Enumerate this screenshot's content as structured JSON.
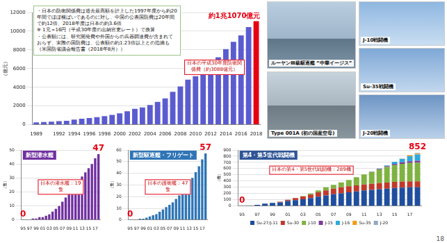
{
  "chart_data": [
    {
      "type": "bar",
      "y_label": "（億元）",
      "categories": [
        "1989",
        null,
        null,
        "1992",
        null,
        "1994",
        null,
        "1996",
        null,
        "1998",
        null,
        "2000",
        null,
        "2002",
        null,
        "2004",
        null,
        "2006",
        null,
        "2008",
        null,
        "2010",
        null,
        "2012",
        null,
        "2014",
        null,
        "2016",
        null,
        "2018"
      ],
      "values": [
        251,
        290,
        330,
        378,
        425,
        550,
        637,
        720,
        806,
        910,
        1047,
        1205,
        1442,
        1694,
        1853,
        2100,
        2447,
        2807,
        3509,
        4099,
        4807,
        5191,
        5836,
        6503,
        7202,
        8082,
        8869,
        9544,
        10444,
        11070
      ],
      "colors": [
        "#5b5bd0",
        "#5b5bd0",
        "#5b5bd0",
        "#5b5bd0",
        "#5b5bd0",
        "#5b5bd0",
        "#5b5bd0",
        "#5b5bd0",
        "#5b5bd0",
        "#5b5bd0",
        "#5b5bd0",
        "#5b5bd0",
        "#5b5bd0",
        "#5b5bd0",
        "#5b5bd0",
        "#5b5bd0",
        "#5b5bd0",
        "#5b5bd0",
        "#5b5bd0",
        "#5b5bd0",
        "#5b5bd0",
        "#5b5bd0",
        "#5b5bd0",
        "#5b5bd0",
        "#5b5bd0",
        "#5b5bd0",
        "#5b5bd0",
        "#5b5bd0",
        "#5b5bd0",
        "#e60012"
      ],
      "ylim": [
        0,
        12000
      ],
      "yticks": [
        0,
        2000,
        4000,
        6000,
        8000,
        10000,
        12000
      ],
      "grid": true,
      "data_labels": true,
      "value_labels": [
        null,
        null,
        null,
        null,
        null,
        null,
        null,
        null,
        null,
        null,
        null,
        null,
        null,
        null,
        null,
        null,
        null,
        null,
        null,
        null,
        null,
        null,
        null,
        null,
        null,
        null,
        null,
        null,
        null,
        "約1兆1070億元"
      ],
      "notes": [
        "・日本の防衛関係費は過去最高額を計上した1997年度から約20年間でほぼ横ばいであるのに対し、中国の公表国防費は20年間で約12倍、2018年度は日本の約3.6倍",
        "※ 1元＝16円（平成30年度の出納官吏レート）で換算",
        "・公表額には、研究開発費や外国からの兵器調達費が含まれておらず、実際の国防費は、公表額の約1.23倍以上との指摘も（米国防省議会報告書（2018年8月））"
      ],
      "annotations": [
        "日本の平成30年度防衛関係費（約3088億元）"
      ]
    },
    {
      "type": "bar",
      "title": "新型潜水艦",
      "y_label": "（隻）",
      "categories": [
        "95",
        null,
        "97",
        null,
        "99",
        null,
        "01",
        null,
        "03",
        null,
        "05",
        null,
        "07",
        null,
        "09",
        null,
        "11",
        null,
        "13",
        null,
        "15",
        null,
        "17",
        null
      ],
      "values": [
        0,
        0,
        0,
        1,
        1,
        2,
        2,
        3,
        4,
        6,
        8,
        10,
        13,
        16,
        19,
        22,
        25,
        28,
        31,
        34,
        37,
        40,
        44,
        47
      ],
      "color": "#7030a0",
      "ylim": [
        0,
        50
      ],
      "yticks": [
        0,
        10,
        20,
        30,
        40,
        50
      ],
      "grid": true,
      "data_labels": true,
      "value_labels": [
        "0",
        null,
        null,
        null,
        null,
        null,
        null,
        null,
        null,
        null,
        null,
        null,
        null,
        null,
        null,
        null,
        null,
        null,
        null,
        null,
        null,
        null,
        null,
        "47"
      ],
      "annotations": [
        "日本の潜水艦：19隻"
      ]
    },
    {
      "type": "bar",
      "title": "新型駆逐艦・フリゲート",
      "y_label": "（隻）",
      "categories": [
        "95",
        null,
        "97",
        null,
        "99",
        null,
        "01",
        null,
        "03",
        null,
        "05",
        null,
        "07",
        null,
        "09",
        null,
        "11",
        null,
        "13",
        null,
        "15",
        null,
        "17",
        null
      ],
      "values": [
        0,
        0,
        0,
        1,
        1,
        2,
        3,
        4,
        5,
        7,
        9,
        11,
        13,
        15,
        18,
        21,
        24,
        27,
        31,
        36,
        41,
        46,
        52,
        57
      ],
      "color": "#2e75b6",
      "ylim": [
        0,
        60
      ],
      "yticks": [
        0,
        10,
        20,
        30,
        40,
        50,
        60
      ],
      "grid": true,
      "data_labels": true,
      "value_labels": [
        "0",
        null,
        null,
        null,
        null,
        null,
        null,
        null,
        null,
        null,
        null,
        null,
        null,
        null,
        null,
        null,
        null,
        null,
        null,
        null,
        null,
        null,
        null,
        "57"
      ],
      "annotations": [
        "日本の護衛艦：47隻"
      ]
    },
    {
      "type": "bar",
      "title": "第4・第5世代戦闘機",
      "y_label": "（機）",
      "stacked": true,
      "legend": "bottom",
      "categories": [
        "95",
        null,
        "97",
        null,
        "99",
        null,
        "01",
        null,
        "03",
        null,
        "05",
        null,
        "07",
        null,
        "09",
        null,
        "11",
        null,
        "13",
        null,
        "15",
        null,
        "17",
        null
      ],
      "series": [
        {
          "name": "Su-27/J-11",
          "color": "#1f4e9e",
          "values": [
            0,
            10,
            20,
            40,
            50,
            60,
            80,
            95,
            110,
            130,
            150,
            170,
            190,
            205,
            220,
            235,
            250,
            260,
            270,
            280,
            290,
            295,
            300,
            300
          ]
        },
        {
          "name": "Su-30",
          "color": "#c0392b",
          "values": [
            0,
            0,
            0,
            0,
            0,
            10,
            20,
            35,
            45,
            55,
            70,
            80,
            90,
            97,
            97,
            97,
            97,
            97,
            97,
            97,
            97,
            97,
            97,
            97
          ]
        },
        {
          "name": "J-10",
          "color": "#7fb241",
          "values": [
            0,
            0,
            0,
            0,
            0,
            0,
            0,
            0,
            5,
            15,
            30,
            50,
            60,
            78,
            100,
            130,
            160,
            190,
            220,
            250,
            270,
            285,
            295,
            300
          ]
        },
        {
          "name": "J-15",
          "color": "#7d3c98",
          "values": [
            0,
            0,
            0,
            0,
            0,
            0,
            0,
            0,
            0,
            0,
            0,
            0,
            0,
            0,
            0,
            0,
            0,
            5,
            10,
            15,
            20,
            25,
            28,
            30
          ]
        },
        {
          "name": "J-16",
          "color": "#2eaadc",
          "values": [
            0,
            0,
            0,
            0,
            0,
            0,
            0,
            0,
            0,
            0,
            0,
            0,
            0,
            0,
            0,
            0,
            0,
            0,
            5,
            10,
            35,
            55,
            80,
            100
          ]
        },
        {
          "name": "Su-35",
          "color": "#f39c12",
          "values": [
            0,
            0,
            0,
            0,
            0,
            0,
            0,
            0,
            0,
            0,
            0,
            0,
            0,
            0,
            0,
            0,
            0,
            0,
            0,
            0,
            0,
            4,
            14,
            14
          ]
        },
        {
          "name": "J-20",
          "color": "#95a5c6",
          "values": [
            0,
            0,
            0,
            0,
            0,
            0,
            0,
            0,
            0,
            0,
            0,
            0,
            0,
            0,
            0,
            0,
            0,
            0,
            0,
            0,
            0,
            0,
            6,
            11
          ]
        }
      ],
      "ylim": [
        0,
        900
      ],
      "yticks": [
        0,
        100,
        200,
        300,
        400,
        500,
        600,
        700,
        800,
        900
      ],
      "grid": true,
      "data_labels": true,
      "total_labels": [
        "0",
        null,
        null,
        null,
        null,
        null,
        null,
        null,
        null,
        null,
        null,
        null,
        null,
        null,
        null,
        null,
        null,
        null,
        null,
        null,
        null,
        null,
        null,
        "852"
      ],
      "annotations": [
        "日本の第4・第5世代戦闘機：289機"
      ]
    }
  ],
  "photos": [
    {
      "caption": "ルーヤンⅢ級駆逐艦 “中華イージス”"
    },
    {
      "caption": "Type 001A (初の国産空母)"
    },
    {
      "caption": "J-10戦闘機"
    },
    {
      "caption": "Su-35戦闘機"
    },
    {
      "caption": "J-20戦闘機"
    }
  ],
  "page_number": "18"
}
